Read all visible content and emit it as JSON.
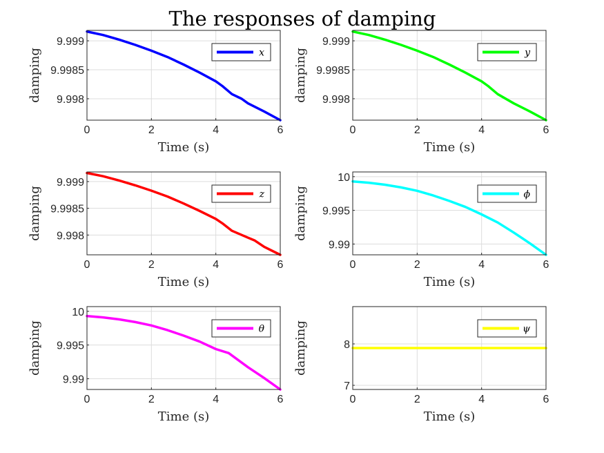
{
  "figure": {
    "title": "The responses of damping"
  },
  "chart_data": [
    {
      "type": "line",
      "title": "",
      "xlabel": "Time (s)",
      "ylabel": "damping",
      "xlim": [
        0,
        6
      ],
      "ylim": [
        9.99763,
        9.99918
      ],
      "xticks": [
        0,
        2,
        4,
        6
      ],
      "yticks": [
        9.998,
        9.9985,
        9.999
      ],
      "ytick_labels": [
        "9.998",
        "9.9985",
        "9.999"
      ],
      "grid": true,
      "legend_position": "top-right",
      "series": [
        {
          "name": "x",
          "color": "#0000ff",
          "x": [
            0,
            0.5,
            1,
            1.5,
            2,
            2.5,
            3,
            3.5,
            4,
            4.2,
            4.5,
            4.8,
            5,
            5.5,
            6
          ],
          "y": [
            9.99916,
            9.9991,
            9.99902,
            9.99893,
            9.99883,
            9.99872,
            9.99859,
            9.99845,
            9.9983,
            9.99822,
            9.99808,
            9.998,
            9.99792,
            9.99778,
            9.99763
          ]
        }
      ]
    },
    {
      "type": "line",
      "title": "",
      "xlabel": "Time (s)",
      "ylabel": "damping",
      "xlim": [
        0,
        6
      ],
      "ylim": [
        9.99763,
        9.99918
      ],
      "xticks": [
        0,
        2,
        4,
        6
      ],
      "yticks": [
        9.998,
        9.9985,
        9.999
      ],
      "ytick_labels": [
        "9.998",
        "9.9985",
        "9.999"
      ],
      "grid": true,
      "legend_position": "top-right",
      "series": [
        {
          "name": "y",
          "color": "#00ff00",
          "x": [
            0,
            0.5,
            1,
            1.5,
            2,
            2.5,
            3,
            3.5,
            4,
            4.2,
            4.5,
            5,
            5.5,
            6
          ],
          "y": [
            9.99916,
            9.9991,
            9.99902,
            9.99893,
            9.99883,
            9.99872,
            9.99859,
            9.99845,
            9.9983,
            9.99822,
            9.99808,
            9.99792,
            9.99778,
            9.99763
          ]
        }
      ]
    },
    {
      "type": "line",
      "title": "",
      "xlabel": "Time (s)",
      "ylabel": "damping",
      "xlim": [
        0,
        6
      ],
      "ylim": [
        9.99763,
        9.99918
      ],
      "xticks": [
        0,
        2,
        4,
        6
      ],
      "yticks": [
        9.998,
        9.9985,
        9.999
      ],
      "ytick_labels": [
        "9.998",
        "9.9985",
        "9.999"
      ],
      "grid": true,
      "legend_position": "top-right",
      "series": [
        {
          "name": "z",
          "color": "#ff0000",
          "x": [
            0,
            0.5,
            1,
            1.5,
            2,
            2.5,
            3,
            3.5,
            4,
            4.2,
            4.5,
            5,
            5.2,
            5.5,
            6
          ],
          "y": [
            9.99916,
            9.9991,
            9.99902,
            9.99893,
            9.99883,
            9.99872,
            9.99859,
            9.99845,
            9.9983,
            9.99822,
            9.99808,
            9.99795,
            9.9979,
            9.99778,
            9.99763
          ]
        }
      ]
    },
    {
      "type": "line",
      "title": "",
      "xlabel": "Time (s)",
      "ylabel": "damping",
      "xlim": [
        0,
        6
      ],
      "ylim": [
        9.9884,
        10.0007
      ],
      "xticks": [
        0,
        2,
        4,
        6
      ],
      "yticks": [
        9.99,
        9.995,
        10
      ],
      "ytick_labels": [
        "9.99",
        "9.995",
        "10"
      ],
      "grid": true,
      "legend_position": "top-right",
      "series": [
        {
          "name": "ϕ",
          "color": "#00ffff",
          "x": [
            0,
            0.5,
            1,
            1.5,
            2,
            2.5,
            3,
            3.5,
            4,
            4.5,
            5,
            5.5,
            6
          ],
          "y": [
            9.9993,
            9.9991,
            9.9988,
            9.9984,
            9.9979,
            9.9972,
            9.9964,
            9.9955,
            9.9944,
            9.9932,
            9.9917,
            9.9901,
            9.9884
          ]
        }
      ]
    },
    {
      "type": "line",
      "title": "",
      "xlabel": "Time (s)",
      "ylabel": "damping",
      "xlim": [
        0,
        6
      ],
      "ylim": [
        9.9884,
        10.0007
      ],
      "xticks": [
        0,
        2,
        4,
        6
      ],
      "yticks": [
        9.99,
        9.995,
        10
      ],
      "ytick_labels": [
        "9.99",
        "9.995",
        "10"
      ],
      "grid": true,
      "legend_position": "top-right",
      "series": [
        {
          "name": "θ",
          "color": "#ff00ff",
          "x": [
            0,
            0.5,
            1,
            1.5,
            2,
            2.5,
            3,
            3.5,
            4,
            4.4,
            5,
            5.5,
            6
          ],
          "y": [
            9.9993,
            9.9991,
            9.9988,
            9.9984,
            9.9979,
            9.9972,
            9.9964,
            9.9955,
            9.9944,
            9.9938,
            9.9917,
            9.9901,
            9.9884
          ]
        }
      ]
    },
    {
      "type": "line",
      "title": "",
      "xlabel": "Time (s)",
      "ylabel": "damping",
      "xlim": [
        0,
        6
      ],
      "ylim": [
        6.9,
        8.9
      ],
      "xticks": [
        0,
        2,
        4,
        6
      ],
      "yticks": [
        7,
        8
      ],
      "ytick_labels": [
        "7",
        "8"
      ],
      "grid": true,
      "legend_position": "top-right",
      "series": [
        {
          "name": "ψ",
          "color": "#ffff00",
          "x": [
            0,
            6
          ],
          "y": [
            7.9,
            7.9
          ]
        }
      ]
    }
  ]
}
